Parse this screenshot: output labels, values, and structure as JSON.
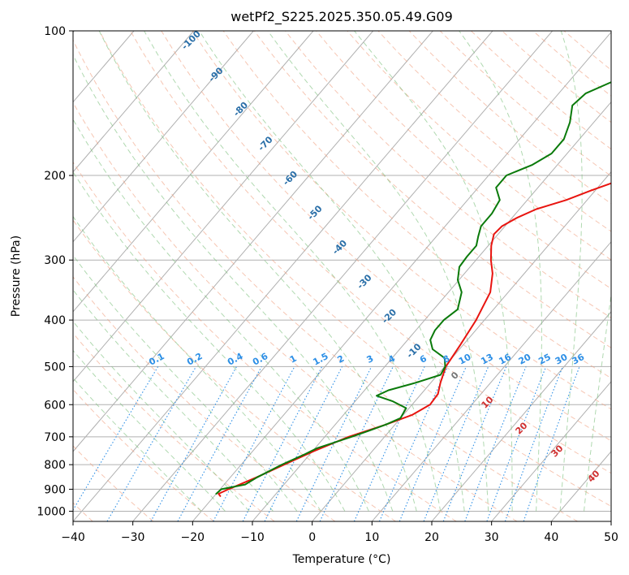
{
  "chart_data": {
    "type": "line",
    "subtype": "skew-T log-P diagram",
    "title": "wetPf2_S225.2025.350.05.49.G09",
    "xlabel": "Temperature (°C)",
    "ylabel": "Pressure (hPa)",
    "xlim": [
      -40,
      50
    ],
    "ylim": [
      1050,
      100
    ],
    "x_ticks": [
      -40,
      -30,
      -20,
      -10,
      0,
      10,
      20,
      30,
      40,
      50
    ],
    "x_tick_labels": [
      "−40",
      "−30",
      "−20",
      "−10",
      "0",
      "10",
      "20",
      "30",
      "40",
      "50"
    ],
    "y_ticks": [
      100,
      200,
      300,
      400,
      500,
      600,
      700,
      800,
      900,
      1000
    ],
    "y_tick_labels": [
      "100",
      "200",
      "300",
      "400",
      "500",
      "600",
      "700",
      "800",
      "900",
      "1000"
    ],
    "grid": true,
    "background_lines": {
      "isotherm_spacing_c": 10,
      "dry_adiabat_labels": [
        "-100",
        "-90",
        "-80",
        "-70",
        "-60",
        "-50",
        "-40",
        "-30",
        "-20",
        "-10"
      ],
      "dry_adiabat_label_temps": [
        -100,
        -90,
        -80,
        -70,
        -60,
        -50,
        -40,
        -30,
        -20,
        -10
      ],
      "mixing_ratio_labels": [
        "0.1",
        "0.2",
        "0.4",
        "0.6",
        "1",
        "1.5",
        "2",
        "3",
        "4",
        "6",
        "8",
        "10",
        "13",
        "16",
        "20",
        "25",
        "30",
        "36"
      ],
      "mixing_ratio_values": [
        0.1,
        0.2,
        0.4,
        0.6,
        1,
        1.5,
        2,
        3,
        4,
        6,
        8,
        10,
        13,
        16,
        20,
        25,
        30,
        36
      ],
      "moist_adiabat_labels": [
        "0",
        "10",
        "20",
        "30",
        "40"
      ],
      "moist_adiabat_values": [
        0,
        10,
        20,
        30,
        40
      ]
    },
    "series": [
      {
        "name": "Temperature",
        "color": "#e8140f",
        "points": [
          {
            "p": 930,
            "t": -19.0
          },
          {
            "p": 920,
            "t": -19.6
          },
          {
            "p": 900,
            "t": -18.6
          },
          {
            "p": 850,
            "t": -15.6
          },
          {
            "p": 800,
            "t": -12.8
          },
          {
            "p": 750,
            "t": -9.8
          },
          {
            "p": 700,
            "t": -6.0
          },
          {
            "p": 660,
            "t": -1.5
          },
          {
            "p": 630,
            "t": 1.5
          },
          {
            "p": 600,
            "t": 3.0
          },
          {
            "p": 570,
            "t": 2.8
          },
          {
            "p": 540,
            "t": 1.6
          },
          {
            "p": 500,
            "t": 0.2
          },
          {
            "p": 450,
            "t": -0.5
          },
          {
            "p": 400,
            "t": -1.4
          },
          {
            "p": 350,
            "t": -3.0
          },
          {
            "p": 320,
            "t": -5.3
          },
          {
            "p": 300,
            "t": -7.5
          },
          {
            "p": 280,
            "t": -9.5
          },
          {
            "p": 265,
            "t": -10.7
          },
          {
            "p": 255,
            "t": -10.5
          },
          {
            "p": 245,
            "t": -9.2
          },
          {
            "p": 235,
            "t": -7.2
          },
          {
            "p": 225,
            "t": -3.5
          },
          {
            "p": 215,
            "t": -0.7
          },
          {
            "p": 200,
            "t": 4.2
          },
          {
            "p": 185,
            "t": 7.0
          },
          {
            "p": 170,
            "t": 9.5
          },
          {
            "p": 155,
            "t": 13.5
          },
          {
            "p": 140,
            "t": 19.0
          },
          {
            "p": 130,
            "t": 21.5
          },
          {
            "p": 120,
            "t": 24.0
          },
          {
            "p": 112,
            "t": 26.8
          },
          {
            "p": 106,
            "t": 29.5
          },
          {
            "p": 100,
            "t": 31.8
          }
        ]
      },
      {
        "name": "Dewpoint",
        "color": "#0a7a0a",
        "points": [
          {
            "p": 920,
            "t": -20.0
          },
          {
            "p": 900,
            "t": -19.8
          },
          {
            "p": 880,
            "t": -16.5
          },
          {
            "p": 850,
            "t": -15.5
          },
          {
            "p": 800,
            "t": -13.2
          },
          {
            "p": 760,
            "t": -10.8
          },
          {
            "p": 740,
            "t": -9.7
          },
          {
            "p": 700,
            "t": -5.5
          },
          {
            "p": 680,
            "t": -3.5
          },
          {
            "p": 660,
            "t": -1.5
          },
          {
            "p": 640,
            "t": 0.0
          },
          {
            "p": 610,
            "t": -0.5
          },
          {
            "p": 590,
            "t": -3.8
          },
          {
            "p": 575,
            "t": -7.2
          },
          {
            "p": 560,
            "t": -6.0
          },
          {
            "p": 540,
            "t": -2.5
          },
          {
            "p": 520,
            "t": 0.5
          },
          {
            "p": 500,
            "t": 0.1
          },
          {
            "p": 480,
            "t": -1.2
          },
          {
            "p": 460,
            "t": -4.5
          },
          {
            "p": 440,
            "t": -6.2
          },
          {
            "p": 420,
            "t": -6.8
          },
          {
            "p": 400,
            "t": -6.8
          },
          {
            "p": 380,
            "t": -6.0
          },
          {
            "p": 350,
            "t": -7.8
          },
          {
            "p": 330,
            "t": -10.2
          },
          {
            "p": 310,
            "t": -11.8
          },
          {
            "p": 295,
            "t": -12.0
          },
          {
            "p": 280,
            "t": -12.0
          },
          {
            "p": 268,
            "t": -13.0
          },
          {
            "p": 255,
            "t": -14.0
          },
          {
            "p": 240,
            "t": -14.0
          },
          {
            "p": 225,
            "t": -14.6
          },
          {
            "p": 212,
            "t": -17.0
          },
          {
            "p": 200,
            "t": -17.0
          },
          {
            "p": 190,
            "t": -14.2
          },
          {
            "p": 180,
            "t": -12.6
          },
          {
            "p": 168,
            "t": -12.6
          },
          {
            "p": 155,
            "t": -14.0
          },
          {
            "p": 143,
            "t": -16.0
          },
          {
            "p": 135,
            "t": -15.5
          },
          {
            "p": 127,
            "t": -12.5
          },
          {
            "p": 118,
            "t": -9.5
          },
          {
            "p": 110,
            "t": -6.5
          },
          {
            "p": 104,
            "t": -4.5
          },
          {
            "p": 100,
            "t": -3.4
          }
        ]
      }
    ]
  }
}
